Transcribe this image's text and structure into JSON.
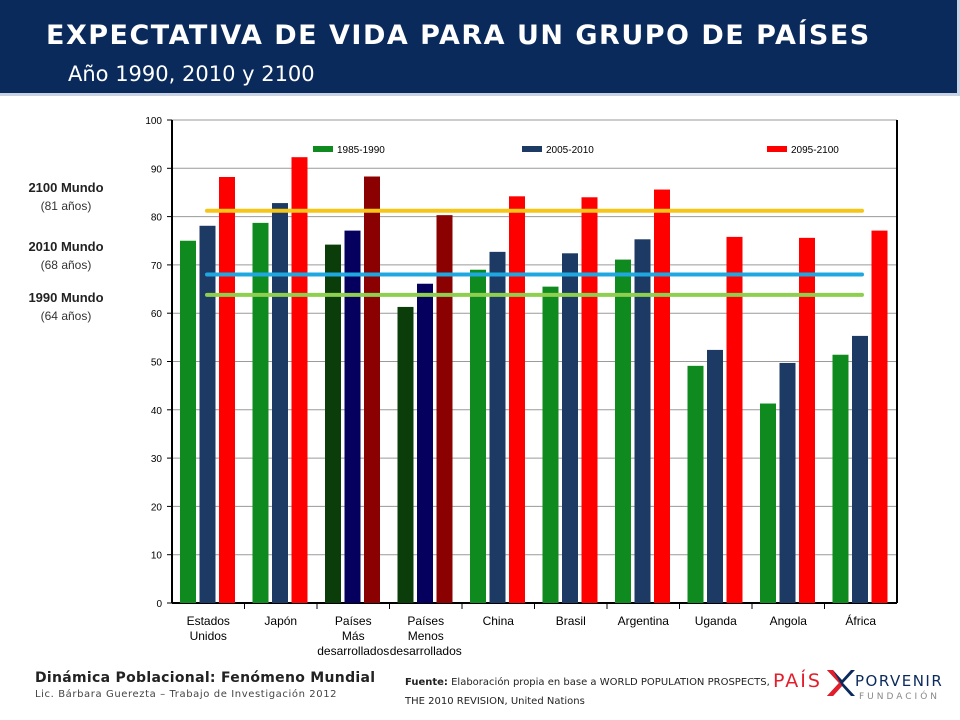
{
  "header": {
    "title": "EXPECTATIVA DE VIDA PARA UN GRUPO DE PAÍSES",
    "subtitle": "Año 1990, 2010 y 2100"
  },
  "annotations": {
    "m2100_label": "2100  Mundo",
    "m2100_value": "(81 años)",
    "m2010_label": "2010  Mundo",
    "m2010_value": "(68 años)",
    "m1990_label": "1990  Mundo",
    "m1990_value": "(64 años)"
  },
  "footer": {
    "title": "Dinámica Poblacional: Fenómeno Mundial",
    "author": "Lic. Bárbara Guerezta – Trabajo de Investigación 2012",
    "source_bold": "Fuente:",
    "source_text": "Elaboración propia en base a WORLD POPULATION PROSPECTS, THE 2010 REVISION, United Nations"
  },
  "logo": {
    "left": "PAÍS",
    "right": "PORVENIR",
    "sub": "FUNDACIÓN"
  },
  "colors": {
    "green": "#0f8a1e",
    "navy": "#1c3a63",
    "red": "#ff0000",
    "dark_green": "#0b3d0b",
    "dark_navy": "#05005e",
    "dark_red": "#8b0000",
    "line_2100": "#f5c518",
    "line_2010": "#1fa8e0",
    "line_1990": "#8fcf4f"
  },
  "chart_data": {
    "type": "bar",
    "categories": [
      "Estados\nUnidos",
      "Japón",
      "Países\nMás\ndesarrollados",
      "Países\nMenos\ndesarrollados",
      "China",
      "Brasil",
      "Argentina",
      "Uganda",
      "Angola",
      "África"
    ],
    "series": [
      {
        "name": "1985-1990",
        "values": [
          75.0,
          78.7,
          74.2,
          61.3,
          69.0,
          65.5,
          71.1,
          49.1,
          41.3,
          51.4
        ]
      },
      {
        "name": "2005-2010",
        "values": [
          78.1,
          82.8,
          77.1,
          66.1,
          72.7,
          72.4,
          75.3,
          52.4,
          49.7,
          55.3
        ]
      },
      {
        "name": "2095-2100",
        "values": [
          88.2,
          92.3,
          88.3,
          80.3,
          84.2,
          84.0,
          85.6,
          75.8,
          75.6,
          77.1
        ]
      }
    ],
    "reference_lines": [
      {
        "year": "2100",
        "value": 81.2
      },
      {
        "year": "2010",
        "value": 68.0
      },
      {
        "year": "1990",
        "value": 63.8
      }
    ],
    "ylim": [
      0,
      100
    ],
    "yticks": [
      0,
      10,
      20,
      30,
      40,
      50,
      60,
      70,
      80,
      90,
      100
    ],
    "grid": true,
    "legend_position": "top"
  }
}
